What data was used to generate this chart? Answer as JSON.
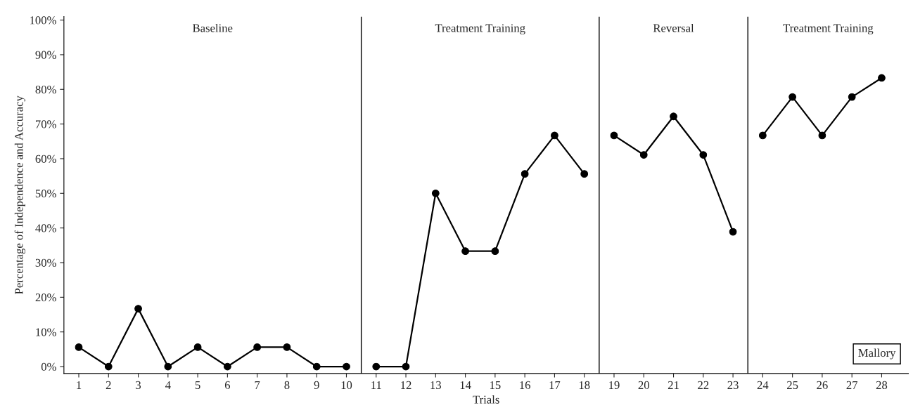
{
  "chart_data": {
    "type": "line",
    "xlabel": "Trials",
    "ylabel": "Percentage of Independence and Accuracy",
    "series": [
      {
        "color": "#000000",
        "x": [
          1,
          2,
          3,
          4,
          5,
          6,
          7,
          8,
          9,
          10
        ],
        "values": [
          5.6,
          0,
          16.7,
          0,
          5.6,
          0,
          5.6,
          5.6,
          0,
          0
        ]
      },
      {
        "color": "#000000",
        "x": [
          11,
          12,
          13,
          14,
          15,
          16,
          17,
          18
        ],
        "values": [
          0,
          0,
          50,
          33.3,
          33.3,
          55.6,
          66.7,
          55.6
        ]
      },
      {
        "color": "#000000",
        "x": [
          19,
          20,
          21,
          22,
          23
        ],
        "values": [
          66.7,
          61.1,
          72.2,
          61.1,
          38.9
        ]
      },
      {
        "color": "#000000",
        "x": [
          24,
          25,
          26,
          27,
          28
        ],
        "values": [
          66.7,
          77.8,
          66.7,
          77.8,
          83.3
        ]
      }
    ],
    "xlim": [
      0.5,
      28.9
    ],
    "xticks": [
      1,
      2,
      3,
      4,
      5,
      6,
      7,
      8,
      9,
      10,
      11,
      12,
      13,
      14,
      15,
      16,
      17,
      18,
      19,
      20,
      21,
      22,
      23,
      24,
      25,
      26,
      27,
      28
    ],
    "ylim": [
      -2,
      101
    ],
    "yticks": [
      {
        "value": 0,
        "label": "0%"
      },
      {
        "value": 10,
        "label": "10%"
      },
      {
        "value": 20,
        "label": "20%"
      },
      {
        "value": 30,
        "label": "30%"
      },
      {
        "value": 40,
        "label": "40%"
      },
      {
        "value": 50,
        "label": "50%"
      },
      {
        "value": 60,
        "label": "60%"
      },
      {
        "value": 70,
        "label": "70%"
      },
      {
        "value": 80,
        "label": "80%"
      },
      {
        "value": 90,
        "label": "90%"
      },
      {
        "value": 100,
        "label": "100%"
      }
    ],
    "ref_lines": [
      {
        "axis": "x",
        "value": 10.5,
        "color": "#000000"
      },
      {
        "axis": "x",
        "value": 18.5,
        "color": "#000000"
      },
      {
        "axis": "x",
        "value": 23.5,
        "color": "#000000"
      }
    ],
    "annotations": [
      "Baseline",
      "Treatment Training",
      "Reversal",
      "Treatment Training",
      "Mallory"
    ],
    "marker": "circle",
    "line_style": "solid",
    "grid": false
  }
}
